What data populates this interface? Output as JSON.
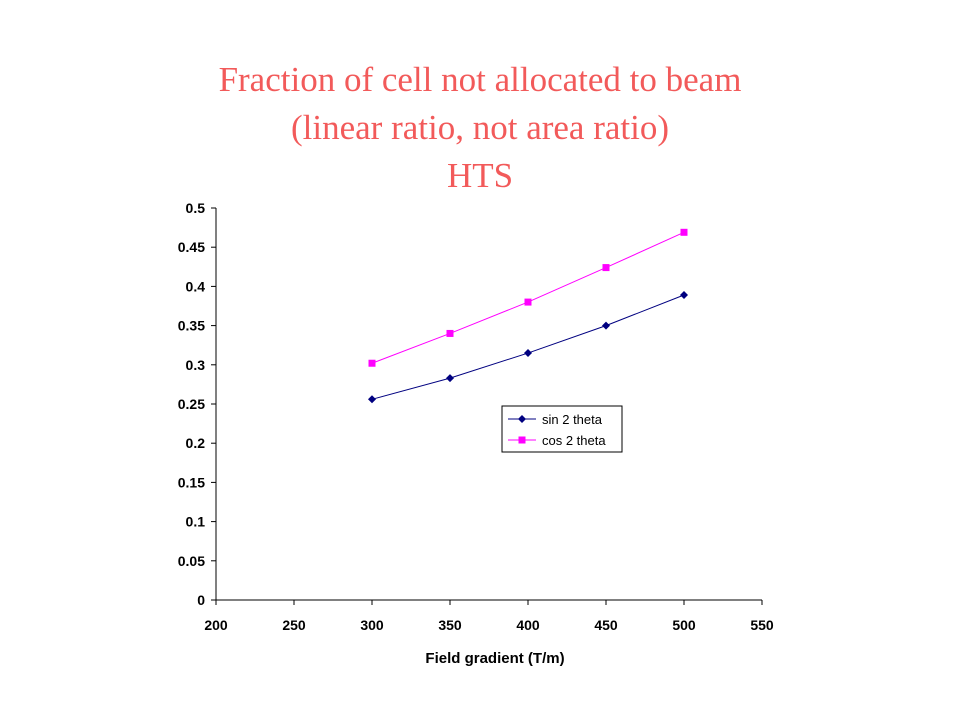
{
  "page": {
    "title_lines": [
      "Fraction of cell not allocated to beam",
      "(linear ratio, not area ratio)",
      "HTS"
    ],
    "title_color": "#f25a5a"
  },
  "chart_data": {
    "type": "line",
    "title": "",
    "xlabel": "Field gradient (T/m)",
    "ylabel": "",
    "xlim": [
      200,
      550
    ],
    "ylim": [
      0,
      0.5
    ],
    "xticks": [
      200,
      250,
      300,
      350,
      400,
      450,
      500,
      550
    ],
    "yticks": [
      0,
      0.05,
      0.1,
      0.15,
      0.2,
      0.25,
      0.3,
      0.35,
      0.4,
      0.45,
      0.5
    ],
    "x": [
      300,
      350,
      400,
      450,
      500
    ],
    "series": [
      {
        "name": "sin 2 theta",
        "values": [
          0.256,
          0.283,
          0.315,
          0.35,
          0.389
        ],
        "color": "#000080",
        "marker": "diamond"
      },
      {
        "name": "cos 2 theta",
        "values": [
          0.302,
          0.34,
          0.38,
          0.424,
          0.469
        ],
        "color": "#ff00ff",
        "marker": "square"
      }
    ],
    "grid": false,
    "legend_position": "center-right"
  }
}
